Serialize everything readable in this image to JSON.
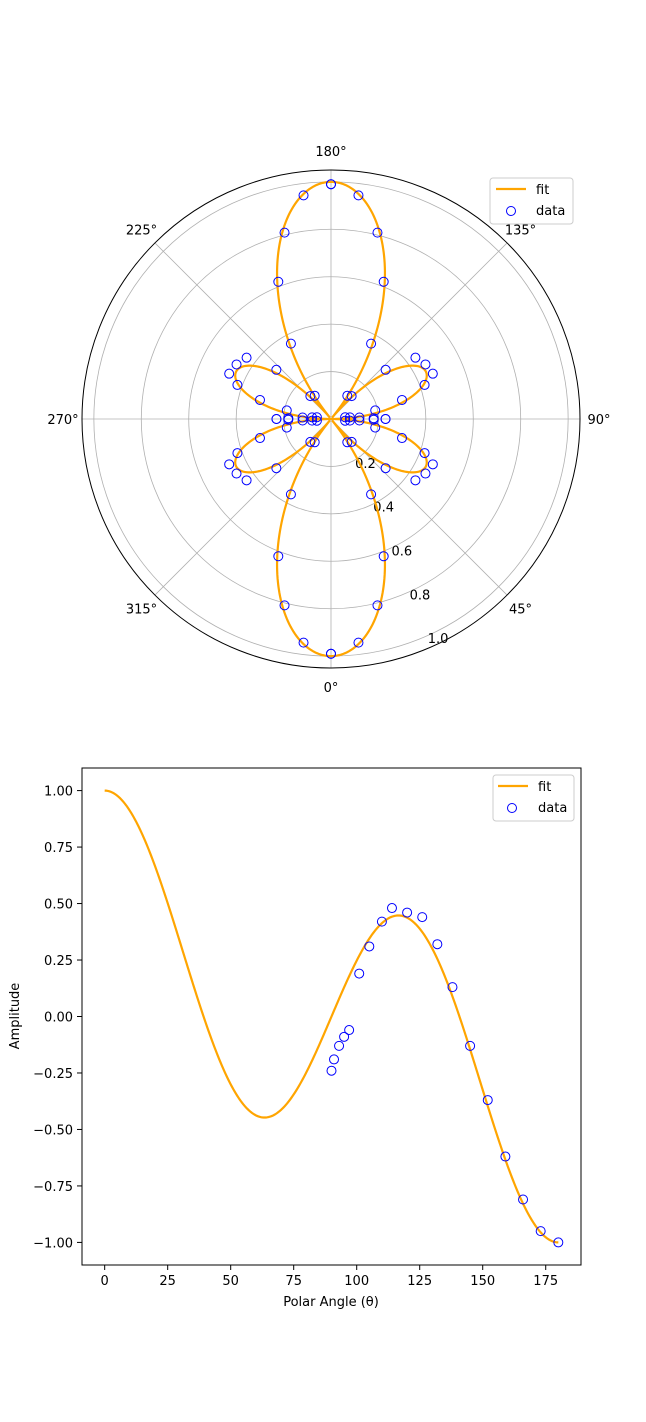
{
  "chart_data": [
    {
      "type": "polar",
      "theta_zero_location": "bottom",
      "theta_direction": "counterclockwise",
      "angle_ticks": [
        "0°",
        "45°",
        "90°",
        "135°",
        "180°",
        "225°",
        "270°",
        "315°"
      ],
      "radial_ticks": [
        "0.2",
        "0.4",
        "0.6",
        "0.8",
        "1.0"
      ],
      "rlim": [
        0,
        1.05
      ],
      "grid": true,
      "legend": {
        "position": "top-right",
        "entries": [
          "fit",
          "data"
        ]
      },
      "fit": {
        "name": "fit",
        "color": "#ffa500",
        "function": "abs(P3(cos(theta)))"
      },
      "data": {
        "name": "data",
        "color": "#0000ff",
        "theta_deg": [
          90,
          91,
          93,
          95,
          97,
          101,
          105,
          110,
          114,
          120,
          126,
          132,
          138,
          145,
          152,
          159,
          166,
          173,
          180
        ],
        "r": [
          0.23,
          0.18,
          0.12,
          0.08,
          0.06,
          0.19,
          0.31,
          0.42,
          0.47,
          0.46,
          0.44,
          0.31,
          0.13,
          0.12,
          0.36,
          0.62,
          0.81,
          0.95,
          0.99
        ]
      }
    },
    {
      "type": "line+scatter",
      "xlabel": "Polar Angle (θ)",
      "ylabel": "Amplitude",
      "xlim": [
        -9,
        189
      ],
      "ylim": [
        -1.1,
        1.1
      ],
      "x_ticks": [
        "0",
        "25",
        "50",
        "75",
        "100",
        "125",
        "150",
        "175"
      ],
      "y_ticks": [
        "1.00",
        "0.75",
        "0.50",
        "0.25",
        "0.00",
        "−0.25",
        "−0.50",
        "−0.75",
        "−1.00"
      ],
      "legend": {
        "position": "top-right",
        "entries": [
          "fit",
          "data"
        ]
      },
      "fit": {
        "name": "fit",
        "color": "#ffa500",
        "function": "P3(cos(theta))"
      },
      "data": {
        "name": "data",
        "color": "#0000ff",
        "x": [
          90,
          91,
          93,
          95,
          97,
          101,
          105,
          110,
          114,
          120,
          126,
          132,
          138,
          145,
          152,
          159,
          166,
          173,
          180
        ],
        "y": [
          -0.24,
          -0.19,
          -0.13,
          -0.09,
          -0.06,
          0.19,
          0.31,
          0.42,
          0.48,
          0.46,
          0.44,
          0.32,
          0.13,
          -0.13,
          -0.37,
          -0.62,
          -0.81,
          -0.95,
          -1.0
        ]
      }
    }
  ]
}
